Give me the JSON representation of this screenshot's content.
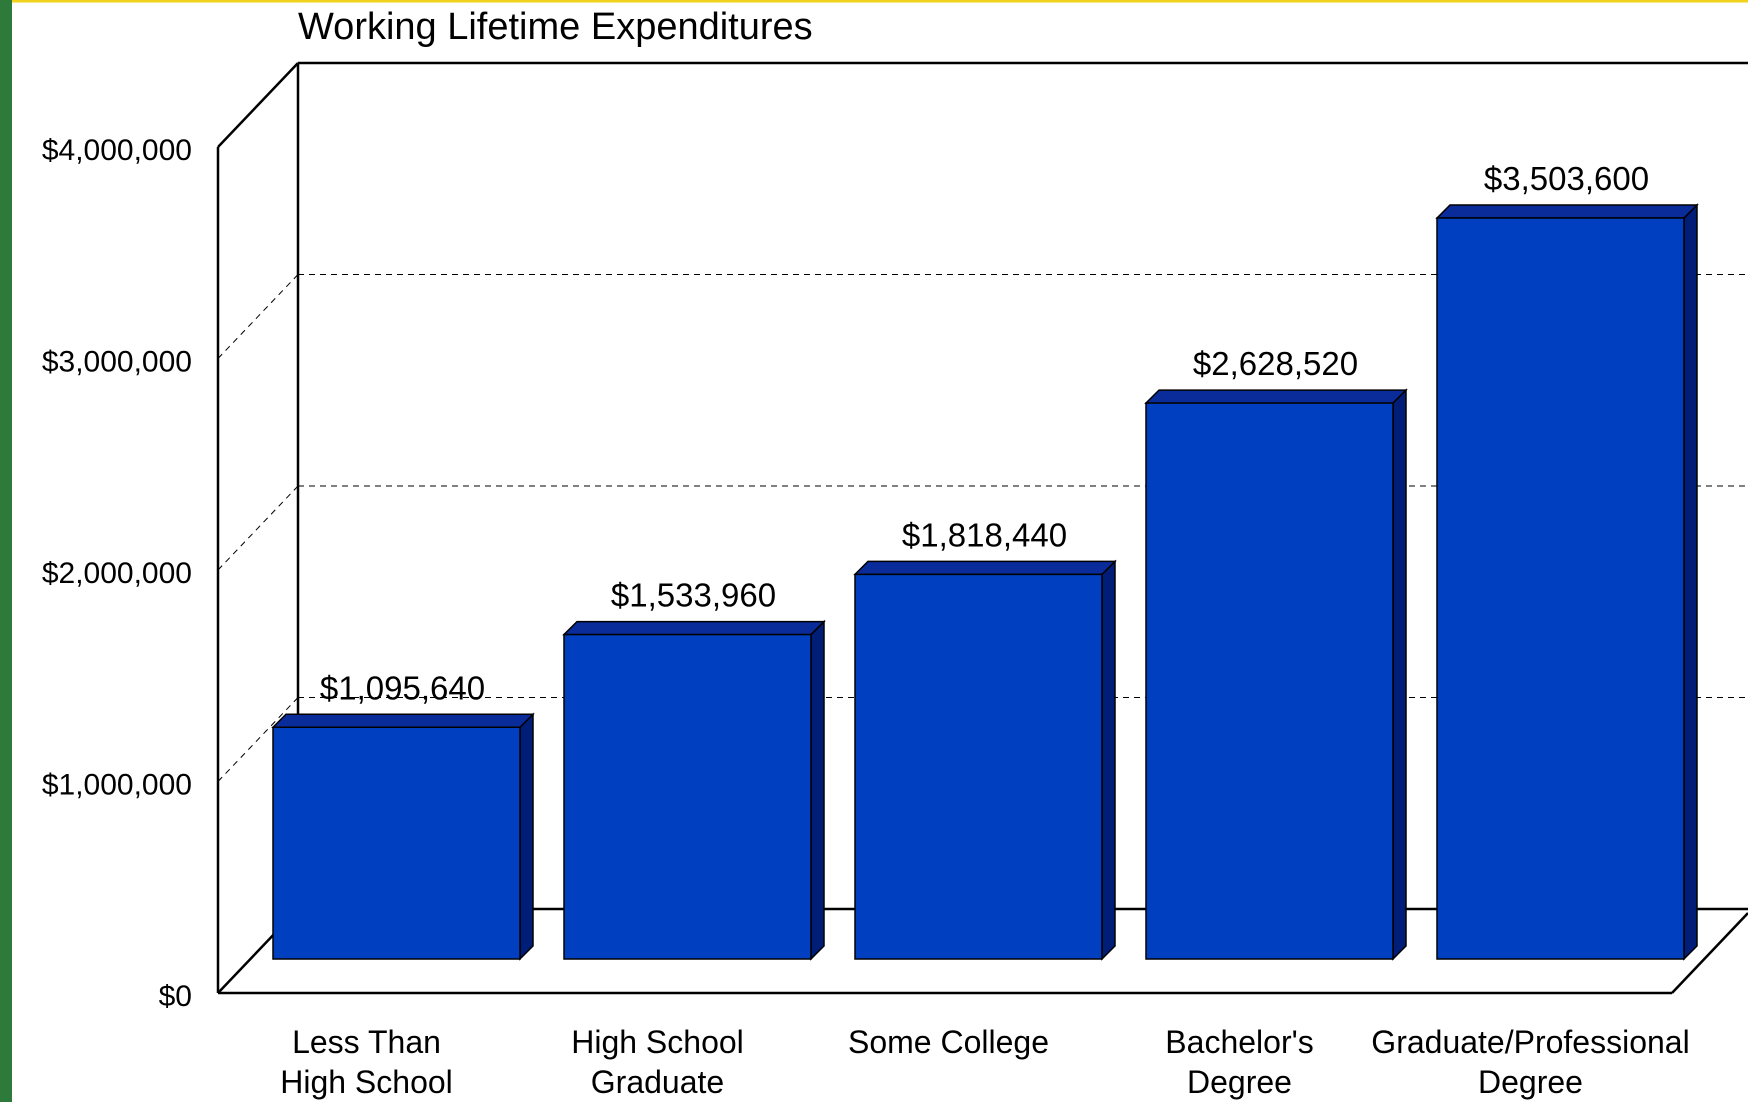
{
  "colors": {
    "bar_front": "#0040C0",
    "bar_side": "#001E78",
    "bar_top": "#0A2C9A",
    "frame": "#000000",
    "grid": "#000000",
    "top_edge": "#F2D21A",
    "side_strip": "#2E7A3A"
  },
  "chart_data": {
    "type": "bar",
    "title": "Working Lifetime Expenditures",
    "categories": [
      [
        "Less Than",
        "High School"
      ],
      [
        "High School",
        "Graduate"
      ],
      [
        "Some College"
      ],
      [
        "Bachelor's",
        "Degree"
      ],
      [
        "Graduate/Professional",
        "Degree"
      ]
    ],
    "values": [
      1095640,
      1533960,
      1818440,
      2628520,
      3503600
    ],
    "value_labels": [
      "$1,095,640",
      "$1,533,960",
      "$1,818,440",
      "$2,628,520",
      "$3,503,600"
    ],
    "yticks": [
      "$0",
      "$1,000,000",
      "$2,000,000",
      "$3,000,000",
      "$4,000,000"
    ],
    "ytick_values": [
      0,
      1000000,
      2000000,
      3000000,
      4000000
    ],
    "ylim": [
      0,
      4000000
    ],
    "grid": true,
    "style": "3d",
    "xlabel": "",
    "ylabel": ""
  }
}
